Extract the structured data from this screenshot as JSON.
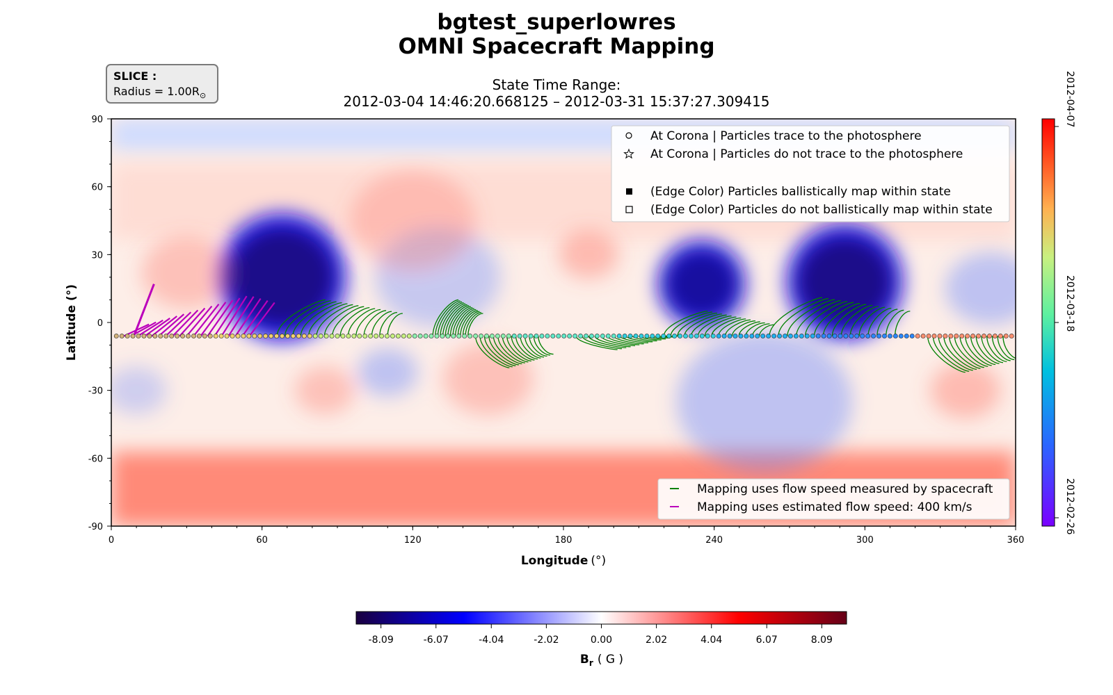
{
  "title_line1": "bgtest_superlowres",
  "title_line2": "OMNI Spacecraft Mapping",
  "subtitle_line1": "State Time Range:",
  "subtitle_line2": "2012-03-04 14:46:20.668125 – 2012-03-31 15:37:27.309415",
  "slice_label": "SLICE :",
  "slice_value": "Radius = 1.00R",
  "slice_sub": "⊙",
  "colors": {
    "green_fieldlines": "#008000",
    "magenta_fieldlines": "#bb00bb",
    "positive": "#ff3b2e",
    "negative": "#0010ff",
    "frame": "#000000"
  },
  "chart_data": {
    "type": "heatmap",
    "xlabel": "Longitude",
    "xlabel_unit": "(°)",
    "ylabel": "Latitude (°)",
    "xlim": [
      0,
      360
    ],
    "ylim": [
      -90,
      90
    ],
    "x_ticks": [
      "0",
      "60",
      "120",
      "180",
      "240",
      "300",
      "360"
    ],
    "y_ticks": [
      "90",
      "60",
      "30",
      "0",
      "-30",
      "-60",
      "-90"
    ],
    "grid": false,
    "legend_top": [
      {
        "marker": "circle-open",
        "label": "At Corona | Particles trace to the photosphere"
      },
      {
        "marker": "star-open",
        "label": "At Corona | Particles do not trace to the photosphere"
      },
      {
        "marker": "square-filled",
        "label": "(Edge Color) Particles ballistically map within state"
      },
      {
        "marker": "square-open",
        "label": "(Edge Color) Particles do not ballistically map within state"
      }
    ],
    "legend_top_position": "top-right",
    "legend_bottom": [
      {
        "color": "#008000",
        "label": "Mapping uses flow speed measured by spacecraft"
      },
      {
        "color": "#bb00bb",
        "label": "Mapping uses estimated flow speed: 400 km/s"
      }
    ],
    "legend_bottom_position": "lower-right",
    "br_blobs": [
      {
        "lon": 68,
        "lat": 20,
        "strength": -1.0,
        "radius": 22
      },
      {
        "lon": 292,
        "lat": 18,
        "strength": -1.0,
        "radius": 20
      },
      {
        "lon": 235,
        "lat": 17,
        "strength": -0.8,
        "radius": 15
      },
      {
        "lon": 130,
        "lat": 20,
        "strength": -0.3,
        "radius": 25
      },
      {
        "lon": 350,
        "lat": 15,
        "strength": -0.35,
        "radius": 18
      },
      {
        "lon": 30,
        "lat": 22,
        "strength": 0.3,
        "radius": 18
      },
      {
        "lon": 190,
        "lat": 30,
        "strength": 0.35,
        "radius": 12
      },
      {
        "lon": 120,
        "lat": 45,
        "strength": 0.25,
        "radius": 25
      },
      {
        "lon": 85,
        "lat": -30,
        "strength": 0.3,
        "radius": 12
      },
      {
        "lon": 150,
        "lat": -25,
        "strength": 0.3,
        "radius": 18
      },
      {
        "lon": 340,
        "lat": -30,
        "strength": 0.35,
        "radius": 14
      },
      {
        "lon": 110,
        "lat": -22,
        "strength": -0.35,
        "radius": 12
      },
      {
        "lon": 10,
        "lat": -30,
        "strength": -0.25,
        "radius": 12
      },
      {
        "lon": 260,
        "lat": -35,
        "strength": -0.35,
        "radius": 35
      }
    ],
    "trajectory_lat": -6,
    "trajectory_points_lon_range": [
      0,
      360
    ],
    "colorbar_time": {
      "orientation": "vertical",
      "labels": [
        "2012-04-07",
        "2012-03-18",
        "2012-02-26"
      ]
    },
    "colorbar_br": {
      "orientation": "horizontal",
      "ticks": [
        "-8.09",
        "-6.07",
        "-4.04",
        "-2.02",
        "0.00",
        "2.02",
        "4.04",
        "6.07",
        "8.09"
      ],
      "range": [
        -9,
        9
      ],
      "label": "B",
      "label_sub": "r",
      "label_unit": "( G )"
    }
  }
}
